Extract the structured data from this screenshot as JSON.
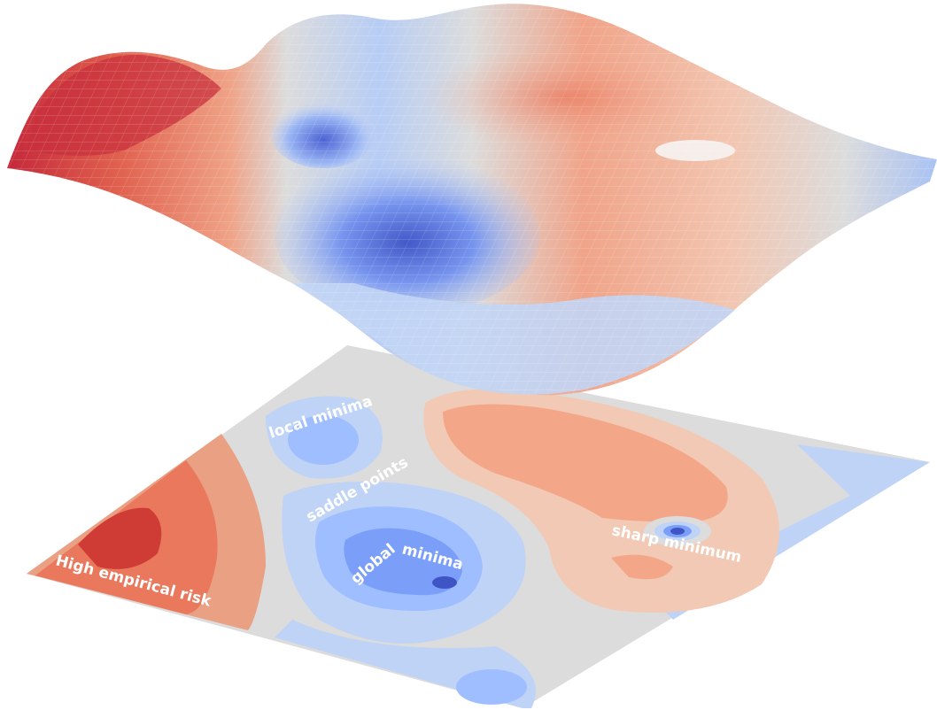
{
  "labels": {
    "local_minima": "local minima",
    "saddle_points": "saddle points",
    "global_minima": "global minima",
    "sharp_minimum": "sharp minimum",
    "high_empirical_risk": "High empirical risk"
  },
  "colors": {
    "deep_red": "#b40426",
    "red": "#d24b40",
    "orange": "#e9785d",
    "salmon": "#f4a788",
    "peach": "#f2c9b4",
    "neutral": "#dddcdc",
    "light_blue": "#bfd3f6",
    "blue": "#9ebeff",
    "mid_blue": "#7b9ff9",
    "deep_blue": "#3b4cc0"
  }
}
